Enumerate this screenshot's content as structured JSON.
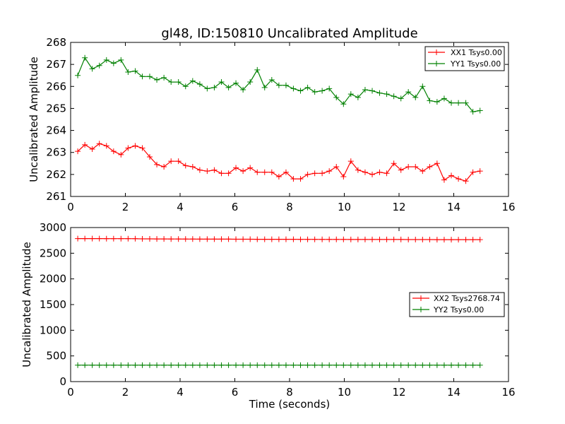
{
  "chart_data": [
    {
      "type": "line",
      "title": "gl48, ID:150810 Uncalibrated Amplitude",
      "xlabel": "",
      "ylabel": "Uncalibrated Amplitude",
      "xlim": [
        0,
        16
      ],
      "ylim": [
        261,
        268
      ],
      "xticks": [
        0,
        2,
        4,
        6,
        8,
        10,
        12,
        14,
        16
      ],
      "yticks": [
        261,
        262,
        263,
        264,
        265,
        266,
        267,
        268
      ],
      "legend_position": "top-right",
      "series": [
        {
          "name": "XX1 Tsys0.00",
          "color": "#ff0000",
          "x": [
            0.26,
            0.52,
            0.79,
            1.05,
            1.31,
            1.57,
            1.84,
            2.1,
            2.36,
            2.62,
            2.89,
            3.15,
            3.41,
            3.67,
            3.94,
            4.2,
            4.46,
            4.72,
            4.99,
            5.25,
            5.51,
            5.77,
            6.04,
            6.3,
            6.56,
            6.82,
            7.09,
            7.35,
            7.61,
            7.87,
            8.14,
            8.4,
            8.66,
            8.92,
            9.19,
            9.45,
            9.71,
            9.97,
            10.24,
            10.5,
            10.76,
            11.02,
            11.29,
            11.55,
            11.81,
            12.07,
            12.34,
            12.6,
            12.86,
            13.12,
            13.39,
            13.65,
            13.91,
            14.17,
            14.44,
            14.7,
            14.96
          ],
          "values": [
            263.05,
            263.35,
            263.15,
            263.4,
            263.3,
            263.05,
            262.9,
            263.2,
            263.3,
            263.2,
            262.8,
            262.45,
            262.35,
            262.6,
            262.6,
            262.4,
            262.35,
            262.2,
            262.15,
            262.2,
            262.05,
            262.05,
            262.3,
            262.15,
            262.3,
            262.1,
            262.1,
            262.1,
            261.9,
            262.1,
            261.8,
            261.8,
            262.0,
            262.05,
            262.05,
            262.15,
            262.35,
            261.9,
            262.6,
            262.2,
            262.1,
            262.0,
            262.1,
            262.05,
            262.5,
            262.2,
            262.35,
            262.35,
            262.15,
            262.35,
            262.5,
            261.75,
            261.95,
            261.8,
            261.7,
            262.1,
            262.15
          ]
        },
        {
          "name": "YY1 Tsys0.00",
          "color": "#008000",
          "x": [
            0.26,
            0.52,
            0.79,
            1.05,
            1.31,
            1.57,
            1.84,
            2.1,
            2.36,
            2.62,
            2.89,
            3.15,
            3.41,
            3.67,
            3.94,
            4.2,
            4.46,
            4.72,
            4.99,
            5.25,
            5.51,
            5.77,
            6.04,
            6.3,
            6.56,
            6.82,
            7.09,
            7.35,
            7.61,
            7.87,
            8.14,
            8.4,
            8.66,
            8.92,
            9.19,
            9.45,
            9.71,
            9.97,
            10.24,
            10.5,
            10.76,
            11.02,
            11.29,
            11.55,
            11.81,
            12.07,
            12.34,
            12.6,
            12.86,
            13.12,
            13.39,
            13.65,
            13.91,
            14.17,
            14.44,
            14.7,
            14.96
          ],
          "values": [
            266.5,
            267.3,
            266.8,
            266.95,
            267.2,
            267.05,
            267.2,
            266.65,
            266.7,
            266.45,
            266.45,
            266.3,
            266.4,
            266.2,
            266.2,
            266.0,
            266.25,
            266.1,
            265.9,
            265.95,
            266.2,
            265.95,
            266.15,
            265.85,
            266.2,
            266.75,
            265.95,
            266.3,
            266.05,
            266.05,
            265.9,
            265.8,
            265.95,
            265.75,
            265.8,
            265.9,
            265.5,
            265.2,
            265.65,
            265.5,
            265.85,
            265.8,
            265.7,
            265.65,
            265.55,
            265.45,
            265.75,
            265.5,
            266.0,
            265.35,
            265.3,
            265.45,
            265.25,
            265.25,
            265.25,
            264.85,
            264.9
          ]
        }
      ]
    },
    {
      "type": "line",
      "title": "",
      "xlabel": "Time (seconds)",
      "ylabel": "Uncalibrated Amplitude",
      "xlim": [
        0,
        16
      ],
      "ylim": [
        0,
        3000
      ],
      "xticks": [
        0,
        2,
        4,
        6,
        8,
        10,
        12,
        14,
        16
      ],
      "yticks": [
        0,
        500,
        1000,
        1500,
        2000,
        2500,
        3000
      ],
      "legend_position": "center-right",
      "series": [
        {
          "name": "XX2 Tsys2768.74",
          "color": "#ff0000",
          "x": [
            0.26,
            0.52,
            0.79,
            1.05,
            1.31,
            1.57,
            1.84,
            2.1,
            2.36,
            2.62,
            2.89,
            3.15,
            3.41,
            3.67,
            3.94,
            4.2,
            4.46,
            4.72,
            4.99,
            5.25,
            5.51,
            5.77,
            6.04,
            6.3,
            6.56,
            6.82,
            7.09,
            7.35,
            7.61,
            7.87,
            8.14,
            8.4,
            8.66,
            8.92,
            9.19,
            9.45,
            9.71,
            9.97,
            10.24,
            10.5,
            10.76,
            11.02,
            11.29,
            11.55,
            11.81,
            12.07,
            12.34,
            12.6,
            12.86,
            13.12,
            13.39,
            13.65,
            13.91,
            14.17,
            14.44,
            14.7,
            14.96
          ],
          "values": [
            2785,
            2785,
            2785,
            2785,
            2784,
            2784,
            2784,
            2784,
            2783,
            2780,
            2780,
            2778,
            2778,
            2777,
            2777,
            2776,
            2776,
            2775,
            2775,
            2775,
            2774,
            2774,
            2773,
            2773,
            2773,
            2772,
            2772,
            2772,
            2771,
            2771,
            2771,
            2770,
            2770,
            2770,
            2769,
            2769,
            2769,
            2769,
            2768,
            2768,
            2768,
            2768,
            2767,
            2767,
            2767,
            2767,
            2766,
            2766,
            2766,
            2766,
            2765,
            2765,
            2765,
            2765,
            2764,
            2764,
            2764
          ]
        },
        {
          "name": "YY2 Tsys0.00",
          "color": "#008000",
          "x": [
            0.26,
            0.52,
            0.79,
            1.05,
            1.31,
            1.57,
            1.84,
            2.1,
            2.36,
            2.62,
            2.89,
            3.15,
            3.41,
            3.67,
            3.94,
            4.2,
            4.46,
            4.72,
            4.99,
            5.25,
            5.51,
            5.77,
            6.04,
            6.3,
            6.56,
            6.82,
            7.09,
            7.35,
            7.61,
            7.87,
            8.14,
            8.4,
            8.66,
            8.92,
            9.19,
            9.45,
            9.71,
            9.97,
            10.24,
            10.5,
            10.76,
            11.02,
            11.29,
            11.55,
            11.81,
            12.07,
            12.34,
            12.6,
            12.86,
            13.12,
            13.39,
            13.65,
            13.91,
            14.17,
            14.44,
            14.7,
            14.96
          ],
          "values": [
            320,
            320,
            320,
            320,
            320,
            320,
            320,
            320,
            320,
            320,
            320,
            320,
            320,
            320,
            320,
            320,
            320,
            320,
            320,
            320,
            320,
            320,
            320,
            320,
            320,
            320,
            320,
            320,
            320,
            320,
            320,
            320,
            320,
            320,
            320,
            320,
            320,
            320,
            320,
            320,
            320,
            320,
            320,
            320,
            320,
            320,
            320,
            320,
            320,
            320,
            320,
            320,
            320,
            320,
            320,
            320,
            320
          ]
        }
      ]
    }
  ]
}
